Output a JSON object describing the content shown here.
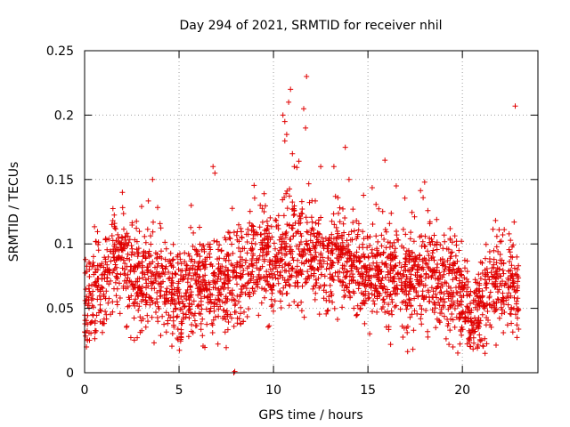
{
  "chart_data": {
    "type": "scatter",
    "title": "Day 294 of 2021, SRMTID for receiver nhil",
    "xlabel": "GPS time / hours",
    "ylabel": "SRMTID / TECUs",
    "xlim": [
      0,
      24
    ],
    "ylim": [
      0,
      0.25
    ],
    "xticks": [
      0,
      5,
      10,
      15,
      20
    ],
    "xtick_labels": [
      "0",
      "5",
      "10",
      "15",
      "20"
    ],
    "yticks": [
      0,
      0.05,
      0.1,
      0.15,
      0.2,
      0.25
    ],
    "ytick_labels": [
      "0",
      "0.05",
      "0.1",
      "0.15",
      "0.2",
      "0.25"
    ],
    "grid": true,
    "marker": "+",
    "color": "#e00000",
    "trend": [
      [
        0.0,
        0.045
      ],
      [
        0.3,
        0.06
      ],
      [
        1.0,
        0.072
      ],
      [
        1.5,
        0.085
      ],
      [
        2.0,
        0.09
      ],
      [
        2.5,
        0.075
      ],
      [
        3.0,
        0.07
      ],
      [
        3.5,
        0.075
      ],
      [
        4.0,
        0.07
      ],
      [
        4.5,
        0.06
      ],
      [
        5.0,
        0.058
      ],
      [
        5.5,
        0.065
      ],
      [
        6.0,
        0.07
      ],
      [
        6.5,
        0.062
      ],
      [
        7.0,
        0.07
      ],
      [
        7.5,
        0.065
      ],
      [
        8.0,
        0.07
      ],
      [
        8.5,
        0.08
      ],
      [
        9.0,
        0.09
      ],
      [
        9.5,
        0.09
      ],
      [
        10.0,
        0.08
      ],
      [
        10.5,
        0.09
      ],
      [
        11.0,
        0.1
      ],
      [
        11.5,
        0.092
      ],
      [
        12.0,
        0.095
      ],
      [
        12.5,
        0.09
      ],
      [
        13.0,
        0.08
      ],
      [
        13.5,
        0.09
      ],
      [
        14.0,
        0.085
      ],
      [
        14.5,
        0.075
      ],
      [
        15.0,
        0.072
      ],
      [
        15.5,
        0.075
      ],
      [
        16.0,
        0.075
      ],
      [
        16.5,
        0.075
      ],
      [
        17.0,
        0.072
      ],
      [
        17.5,
        0.078
      ],
      [
        18.0,
        0.075
      ],
      [
        18.5,
        0.072
      ],
      [
        19.0,
        0.07
      ],
      [
        19.5,
        0.065
      ],
      [
        20.0,
        0.06
      ],
      [
        20.5,
        0.045
      ],
      [
        21.0,
        0.05
      ],
      [
        21.5,
        0.065
      ],
      [
        22.0,
        0.072
      ],
      [
        22.5,
        0.07
      ],
      [
        23.0,
        0.065
      ]
    ],
    "outliers": [
      [
        10.5,
        0.2
      ],
      [
        10.6,
        0.195
      ],
      [
        10.8,
        0.21
      ],
      [
        10.9,
        0.22
      ],
      [
        10.7,
        0.185
      ],
      [
        10.6,
        0.18
      ],
      [
        11.0,
        0.17
      ],
      [
        11.1,
        0.16
      ],
      [
        11.6,
        0.205
      ],
      [
        11.75,
        0.23
      ],
      [
        11.7,
        0.19
      ],
      [
        22.8,
        0.207
      ],
      [
        13.8,
        0.175
      ],
      [
        15.9,
        0.165
      ],
      [
        3.6,
        0.15
      ],
      [
        6.8,
        0.16
      ],
      [
        6.9,
        0.155
      ],
      [
        2.0,
        0.14
      ],
      [
        9.3,
        0.13
      ],
      [
        9.5,
        0.125
      ],
      [
        12.5,
        0.16
      ],
      [
        13.2,
        0.16
      ],
      [
        18.0,
        0.148
      ],
      [
        14.0,
        0.15
      ],
      [
        16.5,
        0.145
      ],
      [
        7.9,
        0.0
      ],
      [
        7.95,
        0.001
      ],
      [
        0.1,
        0.02
      ],
      [
        0.15,
        0.025
      ],
      [
        20.8,
        0.02
      ],
      [
        19.5,
        0.02
      ],
      [
        21.2,
        0.015
      ]
    ],
    "n_points": 2600,
    "seed": 294
  }
}
